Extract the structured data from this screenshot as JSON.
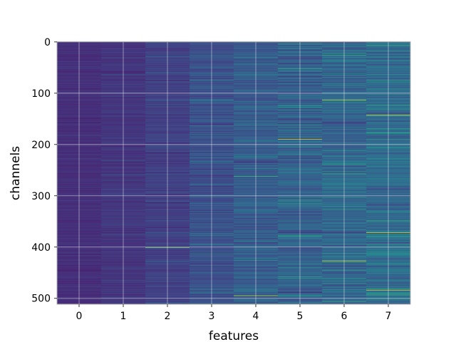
{
  "chart_data": {
    "type": "heatmap",
    "title": "",
    "xlabel": "features",
    "ylabel": "channels",
    "x_categories": [
      "0",
      "1",
      "2",
      "3",
      "4",
      "5",
      "6",
      "7"
    ],
    "y_ticks": [
      0,
      100,
      200,
      300,
      400,
      500
    ],
    "y_range": [
      0,
      511
    ],
    "rows": 512,
    "columns": 8,
    "colormap": "viridis",
    "grid": true,
    "grid_color": "#ffffff",
    "frame_color": "#b0b0b0",
    "column_mean_intensity": [
      0.12,
      0.14,
      0.17,
      0.22,
      0.26,
      0.27,
      0.29,
      0.31
    ],
    "column_spread": [
      0.05,
      0.06,
      0.08,
      0.11,
      0.14,
      0.17,
      0.17,
      0.18
    ],
    "notable_bright_channels": [
      {
        "feature": "5",
        "channel": 190,
        "intensity": 0.9
      },
      {
        "feature": "6",
        "channel": 113,
        "intensity": 0.85
      },
      {
        "feature": "6",
        "channel": 427,
        "intensity": 0.92
      },
      {
        "feature": "7",
        "channel": 143,
        "intensity": 0.95
      },
      {
        "feature": "7",
        "channel": 372,
        "intensity": 0.88
      },
      {
        "feature": "7",
        "channel": 484,
        "intensity": 0.95
      },
      {
        "feature": "4",
        "channel": 495,
        "intensity": 0.8
      },
      {
        "feature": "2",
        "channel": 401,
        "intensity": 0.7
      }
    ]
  }
}
